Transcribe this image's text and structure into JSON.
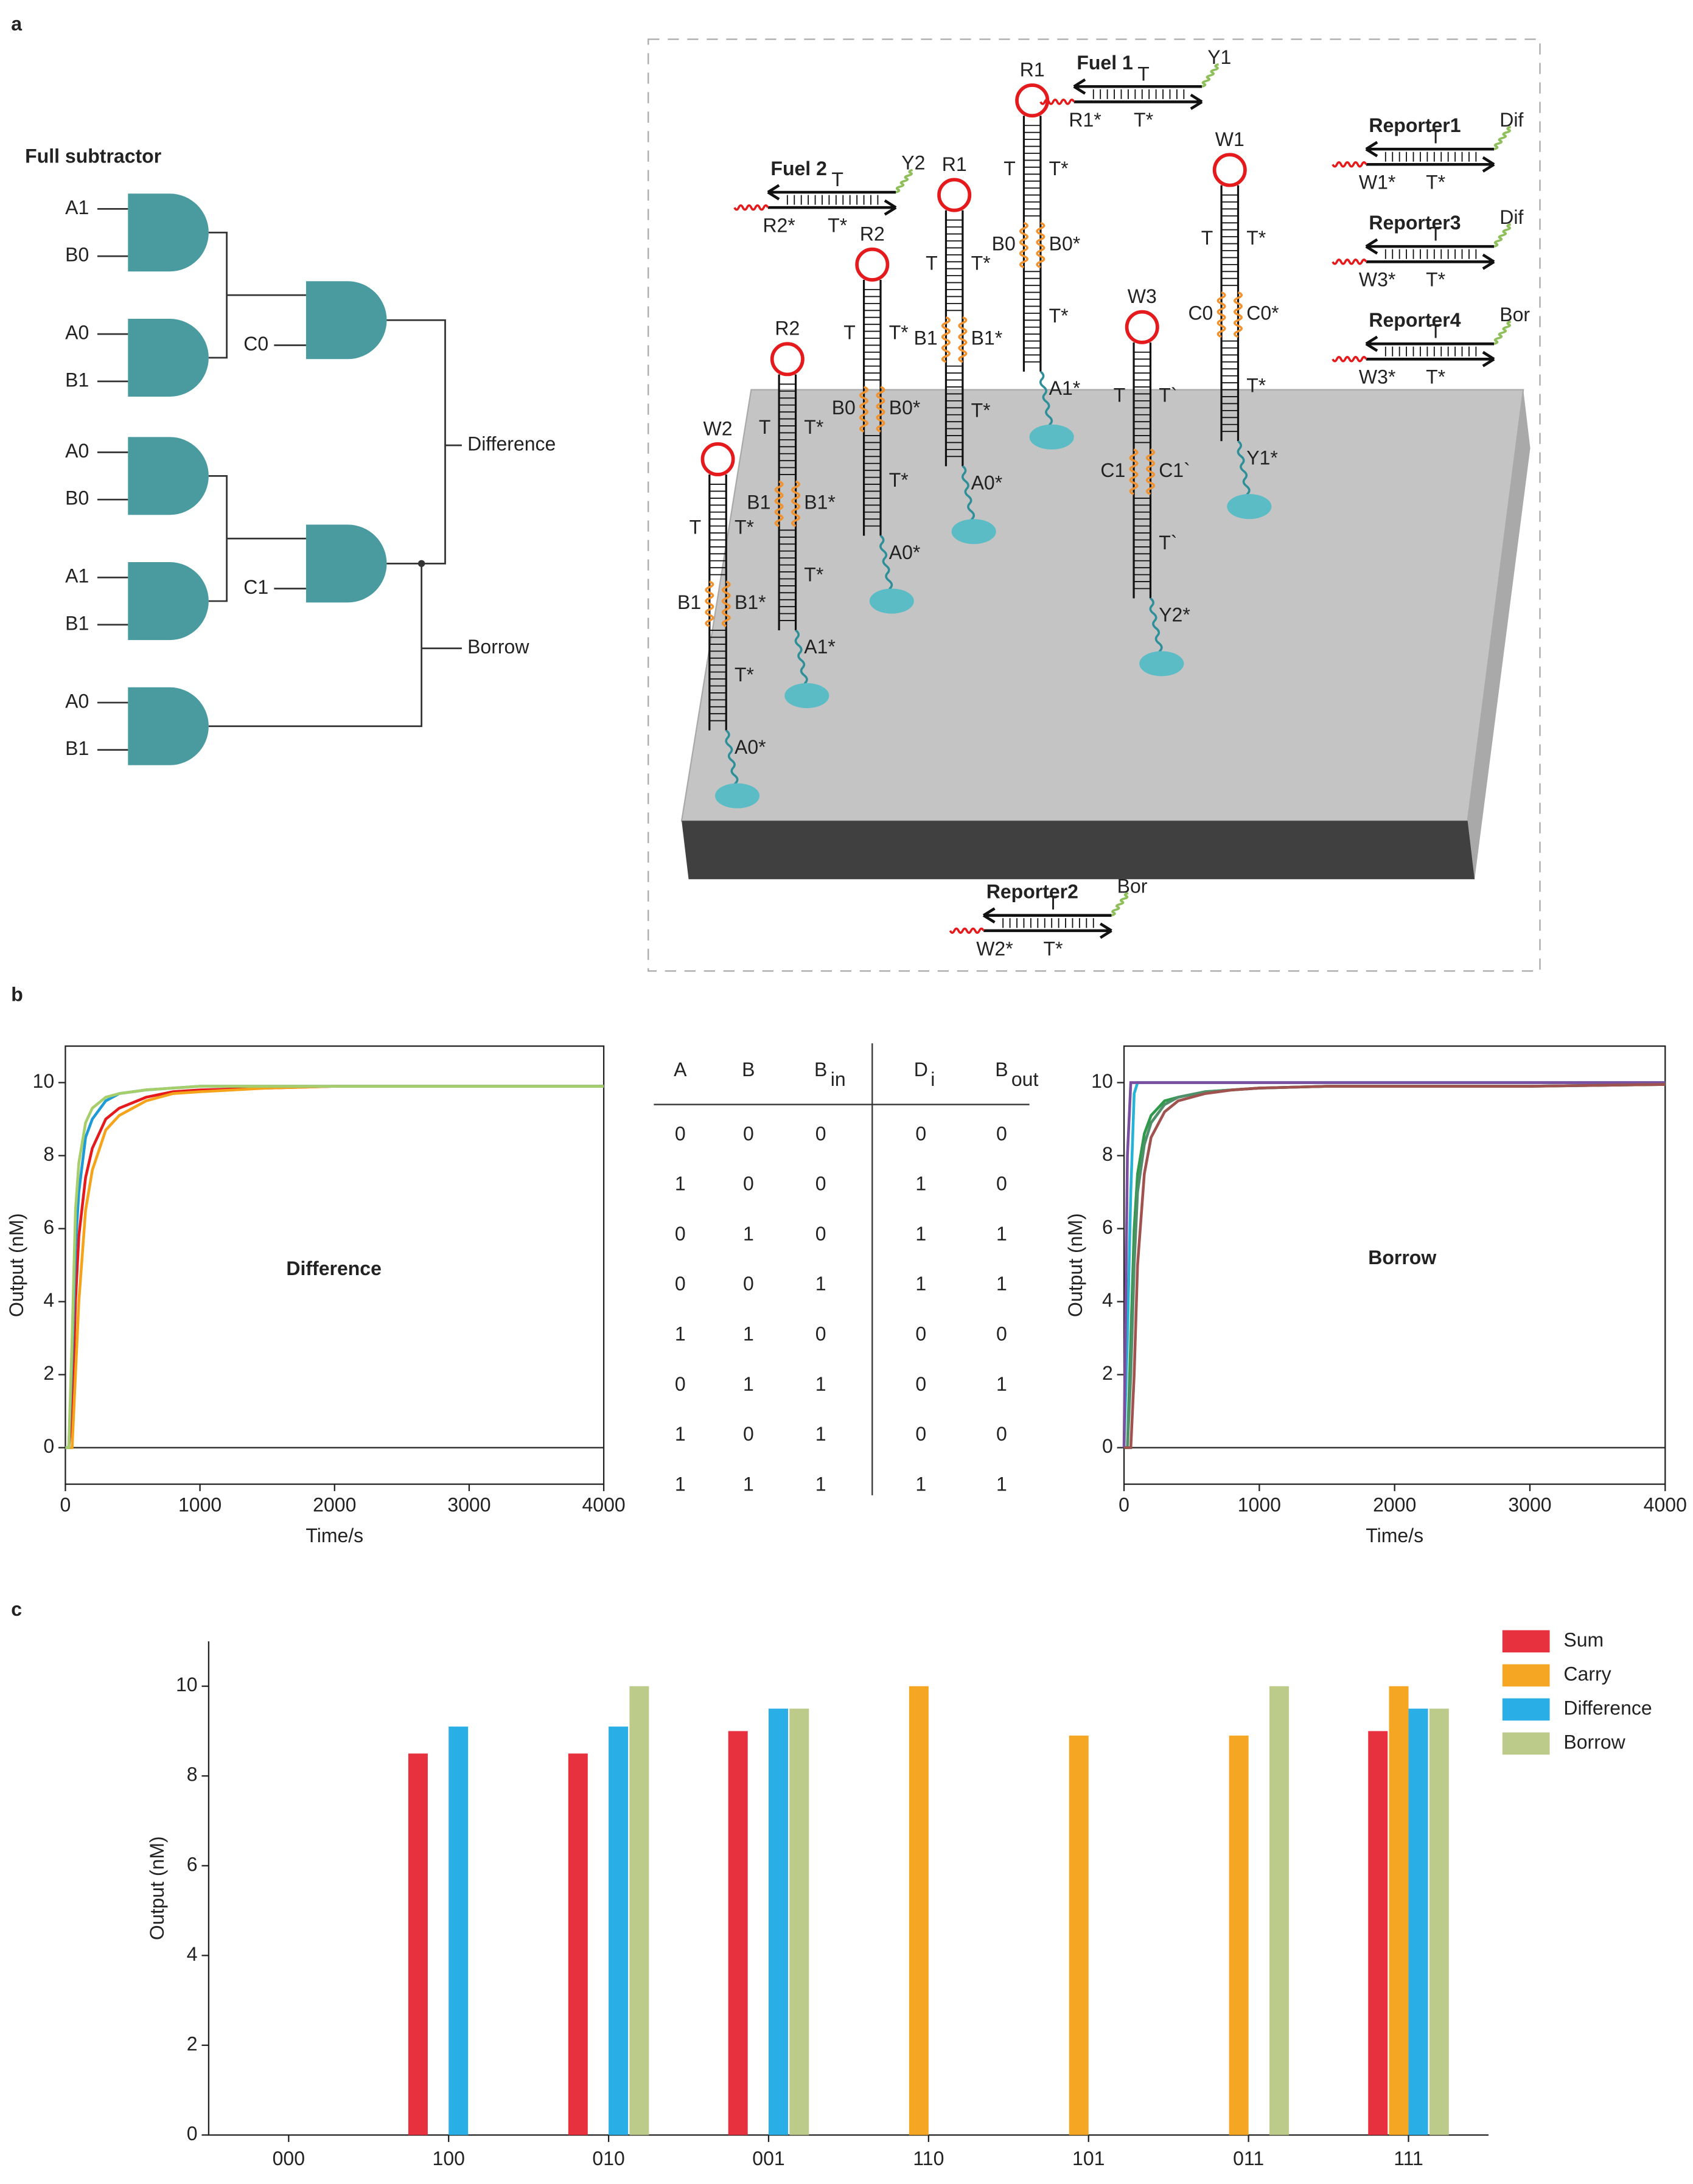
{
  "panel_labels": [
    "a",
    "b",
    "c"
  ],
  "circuit": {
    "title": "Full subtractor",
    "gates": [
      {
        "inputs": [
          "A1",
          "B0"
        ]
      },
      {
        "inputs": [
          "A0",
          "B1"
        ]
      },
      {
        "inputs": [
          "A0",
          "B0"
        ]
      },
      {
        "inputs": [
          "A1",
          "B1"
        ]
      },
      {
        "inputs": [
          "A0",
          "B1"
        ]
      }
    ],
    "intermediates": [
      "C0",
      "C1"
    ],
    "outputs": [
      "Difference",
      "Borrow"
    ]
  },
  "dna": {
    "hairpins": [
      {
        "name": "W2",
        "left": [
          "T",
          "B1"
        ],
        "right": [
          "T*",
          "B1*",
          "T*"
        ],
        "anchor": "A0*"
      },
      {
        "name": "R2",
        "left": [
          "T",
          "B1"
        ],
        "right": [
          "T*",
          "B1*",
          "T*"
        ],
        "anchor": "A1*"
      },
      {
        "name": "R2",
        "left": [
          "T",
          "B0"
        ],
        "right": [
          "T*",
          "B0*",
          "T*"
        ],
        "anchor": "A0*"
      },
      {
        "name": "R1",
        "left": [
          "T",
          "B1"
        ],
        "right": [
          "T*",
          "B1*",
          "T*"
        ],
        "anchor": "A0*"
      },
      {
        "name": "R1",
        "left": [
          "T",
          "B0"
        ],
        "right": [
          "T*",
          "B0*",
          "T*"
        ],
        "anchor": "A1*"
      },
      {
        "name": "W3",
        "left": [
          "T",
          "C1"
        ],
        "right": [
          "T`",
          "C1`",
          "T`"
        ],
        "anchor": "Y2*"
      },
      {
        "name": "W1",
        "left": [
          "T",
          "C0"
        ],
        "right": [
          "T*",
          "C0*",
          "T*"
        ],
        "anchor": "Y1*"
      }
    ],
    "duplexes": [
      {
        "name": "Fuel 1",
        "top": "T",
        "bottom": "T*",
        "input": "R1*",
        "tag": "Y1"
      },
      {
        "name": "Fuel 2",
        "top": "T",
        "bottom": "T*",
        "input": "R2*",
        "tag": "Y2"
      },
      {
        "name": "Reporter1",
        "top": "T",
        "bottom": "T*",
        "input": "W1*",
        "tag": "Dif"
      },
      {
        "name": "Reporter3",
        "top": "T",
        "bottom": "T*",
        "input": "W3*",
        "tag": "Dif"
      },
      {
        "name": "Reporter4",
        "top": "T",
        "bottom": "T*",
        "input": "W3*",
        "tag": "Bor"
      },
      {
        "name": "Reporter2",
        "top": "T",
        "bottom": "T*",
        "input": "W2*",
        "tag": "Bor"
      }
    ]
  },
  "table": {
    "headers": [
      {
        "text": "A"
      },
      {
        "text": "B"
      },
      {
        "text": "B",
        "sub": "in"
      },
      {
        "text": "D",
        "sub": "i"
      },
      {
        "text": "B",
        "sub": "out"
      }
    ],
    "rows": [
      [
        0,
        0,
        0,
        0,
        0
      ],
      [
        1,
        0,
        0,
        1,
        0
      ],
      [
        0,
        1,
        0,
        1,
        1
      ],
      [
        0,
        0,
        1,
        1,
        1
      ],
      [
        1,
        1,
        0,
        0,
        0
      ],
      [
        0,
        1,
        1,
        0,
        1
      ],
      [
        1,
        0,
        1,
        0,
        0
      ],
      [
        1,
        1,
        1,
        1,
        1
      ]
    ],
    "cell_colors": [
      {
        "row": 1,
        "col": 3,
        "color": "#e41a1c"
      },
      {
        "row": 2,
        "col": 3,
        "color": "#f5a31b"
      },
      {
        "row": 2,
        "col": 4,
        "color": "#27b3d6"
      },
      {
        "row": 3,
        "col": 3,
        "color": "#1e9bd7"
      },
      {
        "row": 3,
        "col": 4,
        "color": "#2e9a4a"
      },
      {
        "row": 5,
        "col": 4,
        "color": "#7b4fa0"
      },
      {
        "row": 7,
        "col": 3,
        "color": "#a6cf6b"
      },
      {
        "row": 7,
        "col": 4,
        "color": "#a0524f"
      }
    ]
  },
  "chart_data": [
    {
      "type": "line",
      "title": "Difference",
      "xlabel": "Time/s",
      "ylabel": "Output (nM)",
      "x": [
        0,
        25,
        50,
        75,
        100,
        150,
        200,
        300,
        400,
        600,
        800,
        1000,
        1500,
        2000,
        3000,
        4000
      ],
      "series": [
        {
          "color": "#e41a1c",
          "values": [
            0,
            0,
            1,
            4,
            5.8,
            7.4,
            8.2,
            9.0,
            9.3,
            9.6,
            9.75,
            9.8,
            9.85,
            9.9,
            9.9,
            9.9
          ]
        },
        {
          "color": "#f5a31b",
          "values": [
            0,
            0,
            0,
            2,
            4,
            6.5,
            7.6,
            8.7,
            9.1,
            9.5,
            9.7,
            9.75,
            9.85,
            9.9,
            9.9,
            9.9
          ]
        },
        {
          "color": "#1e9bd7",
          "values": [
            0,
            0,
            2.5,
            5.5,
            7,
            8.5,
            9.0,
            9.5,
            9.7,
            9.8,
            9.85,
            9.9,
            9.9,
            9.9,
            9.9,
            9.9
          ]
        },
        {
          "color": "#a6cf6b",
          "values": [
            0,
            0,
            3,
            6.5,
            7.8,
            8.9,
            9.3,
            9.6,
            9.7,
            9.8,
            9.85,
            9.9,
            9.9,
            9.9,
            9.9,
            9.9
          ]
        }
      ],
      "xlim": [
        0,
        4000
      ],
      "xticks": [
        0,
        1000,
        2000,
        3000,
        4000
      ],
      "ylim": [
        -1,
        11
      ],
      "yticks": [
        0,
        2,
        4,
        6,
        8,
        10
      ]
    },
    {
      "type": "line",
      "title": "Borrow",
      "xlabel": "Time/s",
      "ylabel": "Output (nM)",
      "x": [
        0,
        25,
        50,
        75,
        100,
        150,
        200,
        300,
        400,
        600,
        800,
        1000,
        1500,
        2000,
        3000,
        4000
      ],
      "series": [
        {
          "color": "#27b3d6",
          "values": [
            0,
            3,
            7,
            9.7,
            10,
            10,
            10,
            10,
            10,
            10,
            10,
            10,
            10,
            10,
            10,
            10
          ]
        },
        {
          "color": "#7b4fa0",
          "values": [
            0,
            8,
            10,
            10,
            10,
            10,
            10,
            10,
            10,
            10,
            10,
            10,
            10,
            10,
            10,
            10
          ]
        },
        {
          "color": "#2e9a4a",
          "values": [
            0,
            0,
            3,
            6,
            7.5,
            8.6,
            9.1,
            9.5,
            9.6,
            9.75,
            9.8,
            9.85,
            9.9,
            9.9,
            9.9,
            9.95
          ]
        },
        {
          "color": "#4f8f6a",
          "values": [
            0,
            0,
            2,
            5,
            7,
            8.3,
            8.9,
            9.4,
            9.6,
            9.75,
            9.8,
            9.85,
            9.9,
            9.9,
            9.9,
            9.95
          ]
        },
        {
          "color": "#a0524f",
          "values": [
            0,
            0,
            0,
            2,
            5,
            7.5,
            8.5,
            9.2,
            9.5,
            9.7,
            9.8,
            9.85,
            9.9,
            9.9,
            9.9,
            9.95
          ]
        }
      ],
      "xlim": [
        0,
        4000
      ],
      "xticks": [
        0,
        1000,
        2000,
        3000,
        4000
      ],
      "ylim": [
        -1,
        11
      ],
      "yticks": [
        0,
        2,
        4,
        6,
        8,
        10
      ]
    },
    {
      "type": "bar",
      "ylabel": "Output (nM)",
      "categories": [
        "000",
        "100",
        "010",
        "001",
        "110",
        "101",
        "011",
        "111"
      ],
      "series": [
        {
          "name": "Sum",
          "color": "#e8313f",
          "values": [
            0,
            8.5,
            8.5,
            9,
            0,
            0,
            0,
            9
          ]
        },
        {
          "name": "Carry",
          "color": "#f5a623",
          "values": [
            0,
            0,
            0,
            0,
            10,
            8.9,
            8.9,
            10
          ]
        },
        {
          "name": "Difference",
          "color": "#29aee6",
          "values": [
            0,
            9.1,
            9.1,
            9.5,
            0,
            0,
            0,
            9.5
          ]
        },
        {
          "name": "Borrow",
          "color": "#bccb8a",
          "values": [
            0,
            0,
            10,
            9.5,
            0,
            0,
            10,
            9.5
          ]
        }
      ],
      "ylim": [
        0,
        11
      ],
      "yticks": [
        0,
        2,
        4,
        6,
        8,
        10
      ],
      "legend": "upper right"
    }
  ]
}
